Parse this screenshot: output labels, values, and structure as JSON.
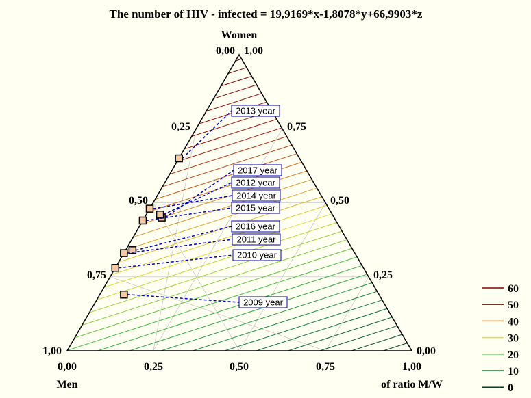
{
  "chart_data": {
    "type": "ternary-contour",
    "title": "The number of HIV - infected  = 19,9169*x-1,8078*y+66,9903*z",
    "axes": {
      "top_vertex_label": "Women",
      "left_vertex_label": "Men",
      "right_vertex_label": "of ratio M/W",
      "top_left_value": "0,00",
      "top_right_value": "1,00",
      "left_vertex_value": "1,00",
      "right_vertex_value": "0,00",
      "bottom_ticks": [
        "0,00",
        "0,25",
        "0,50",
        "0,75",
        "1,00"
      ],
      "left_ticks": [
        "0,25",
        "0,50",
        "0,75"
      ],
      "right_ticks": [
        "0,75",
        "0,50",
        "0,25"
      ]
    },
    "coefficients": {
      "x": 19.9169,
      "y": -1.8078,
      "z": 66.9903
    },
    "contour_step": 2,
    "legend": {
      "placement": "right",
      "entries": [
        {
          "label": "60",
          "color": "#8b0000"
        },
        {
          "label": "50",
          "color": "#a82010"
        },
        {
          "label": "40",
          "color": "#e08020"
        },
        {
          "label": "30",
          "color": "#e0e030"
        },
        {
          "label": "20",
          "color": "#40c040"
        },
        {
          "label": "10",
          "color": "#108040"
        },
        {
          "label": "0",
          "color": "#004020"
        }
      ]
    },
    "points": [
      {
        "label": "2013 year",
        "x": 0.35,
        "y": 0.0,
        "z": 0.65
      },
      {
        "label": "2017 year",
        "x": 0.5,
        "y": 0.05,
        "z": 0.45
      },
      {
        "label": "2012 year",
        "x": 0.5,
        "y": 0.04,
        "z": 0.46
      },
      {
        "label": "2014 year",
        "x": 0.52,
        "y": 0.0,
        "z": 0.48
      },
      {
        "label": "2015 year",
        "x": 0.56,
        "y": 0.0,
        "z": 0.44
      },
      {
        "label": "2016 year",
        "x": 0.64,
        "y": 0.02,
        "z": 0.34
      },
      {
        "label": "2011 year",
        "x": 0.67,
        "y": 0.0,
        "z": 0.33
      },
      {
        "label": "2010 year",
        "x": 0.72,
        "y": 0.0,
        "z": 0.28
      },
      {
        "label": "2009 year",
        "x": 0.74,
        "y": 0.07,
        "z": 0.19
      }
    ]
  }
}
